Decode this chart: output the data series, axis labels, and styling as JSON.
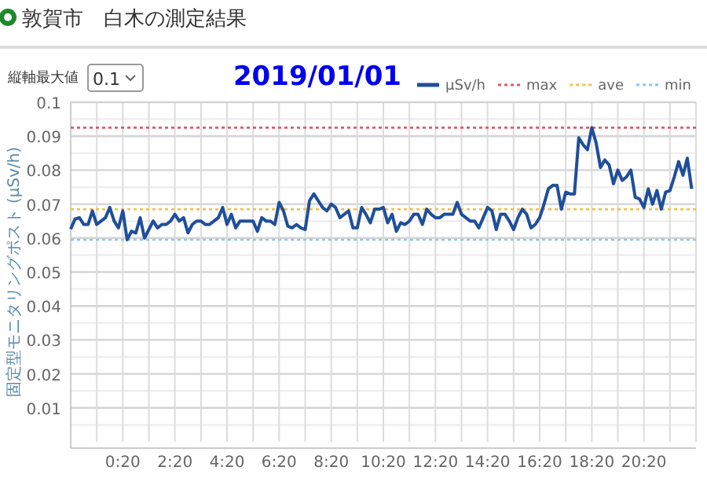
{
  "chart_data": {
    "type": "line",
    "title": "敦賀市　白木の測定結果",
    "subtitle": "2019/01/01",
    "ylabel": "固定型モニタリングポスト (μSv/h)",
    "annotations": [
      "縦軸最大値",
      "0.1"
    ],
    "categories": [
      null,
      null,
      null,
      null,
      null,
      null,
      null,
      null,
      null,
      null,
      null,
      null,
      "0:20",
      null,
      null,
      null,
      null,
      null,
      null,
      null,
      null,
      null,
      null,
      null,
      "2:20",
      null,
      null,
      null,
      null,
      null,
      null,
      null,
      null,
      null,
      null,
      null,
      "4:20",
      null,
      null,
      null,
      null,
      null,
      null,
      null,
      null,
      null,
      null,
      null,
      "6:20",
      null,
      null,
      null,
      null,
      null,
      null,
      null,
      null,
      null,
      null,
      null,
      "8:20",
      null,
      null,
      null,
      null,
      null,
      null,
      null,
      null,
      null,
      null,
      null,
      "10:20",
      null,
      null,
      null,
      null,
      null,
      null,
      null,
      null,
      null,
      null,
      null,
      "12:20",
      null,
      null,
      null,
      null,
      null,
      null,
      null,
      null,
      null,
      null,
      null,
      "14:20",
      null,
      null,
      null,
      null,
      null,
      null,
      null,
      null,
      null,
      null,
      null,
      "16:20",
      null,
      null,
      null,
      null,
      null,
      null,
      null,
      null,
      null,
      null,
      null,
      "18:20",
      null,
      null,
      null,
      null,
      null,
      null,
      null,
      null,
      null,
      null,
      null,
      "20:20",
      null,
      null,
      null,
      null,
      null,
      null,
      null,
      null,
      null,
      null,
      null
    ],
    "series": [
      {
        "name": "μSv/h",
        "color": "#1f4e9a",
        "values": [
          0.0626,
          0.0656,
          0.066,
          0.064,
          0.064,
          0.068,
          0.064,
          0.065,
          0.066,
          0.069,
          0.065,
          0.063,
          0.068,
          0.0595,
          0.062,
          0.0615,
          0.066,
          0.06,
          0.0625,
          0.065,
          0.063,
          0.064,
          0.064,
          0.065,
          0.067,
          0.065,
          0.066,
          0.0615,
          0.064,
          0.065,
          0.065,
          0.064,
          0.064,
          0.065,
          0.066,
          0.069,
          0.064,
          0.067,
          0.063,
          0.065,
          0.065,
          0.065,
          0.065,
          0.062,
          0.066,
          0.065,
          0.065,
          0.064,
          0.0705,
          0.068,
          0.0635,
          0.063,
          0.064,
          0.063,
          0.0625,
          0.071,
          0.073,
          0.071,
          0.069,
          0.068,
          0.07,
          0.069,
          0.066,
          0.067,
          0.068,
          0.063,
          0.063,
          0.069,
          0.067,
          0.0645,
          0.0685,
          0.0685,
          0.069,
          0.0645,
          0.067,
          0.062,
          0.0645,
          0.064,
          0.065,
          0.067,
          0.067,
          0.064,
          0.0685,
          0.067,
          0.066,
          0.066,
          0.067,
          0.067,
          0.067,
          0.0705,
          0.067,
          0.066,
          0.065,
          0.065,
          0.063,
          0.066,
          0.069,
          0.068,
          0.0625,
          0.067,
          0.067,
          0.065,
          0.0625,
          0.066,
          0.0685,
          0.067,
          0.063,
          0.064,
          0.066,
          0.07,
          0.0745,
          0.0755,
          0.0755,
          0.0685,
          0.0735,
          0.073,
          0.073,
          0.0895,
          0.0875,
          0.086,
          0.0925,
          0.088,
          0.0808,
          0.083,
          0.0815,
          0.076,
          0.08,
          0.077,
          0.078,
          0.08,
          0.072,
          0.0715,
          0.069,
          0.0745,
          0.07,
          0.074,
          0.0685,
          0.0735,
          0.074,
          0.078,
          0.0825,
          0.0785,
          0.0835,
          0.0745
        ]
      }
    ],
    "ref_lines": [
      {
        "axis": "y",
        "value": 0.0925,
        "label": "max",
        "color": "#e05a6a",
        "line_style": "dotted"
      },
      {
        "axis": "y",
        "value": 0.0685,
        "label": "ave",
        "color": "#f5c04a",
        "line_style": "dotted"
      },
      {
        "axis": "y",
        "value": 0.0595,
        "label": "min",
        "color": "#8cc8e8",
        "line_style": "dotted"
      }
    ],
    "ylim": [
      0,
      0.1
    ],
    "yticks": [
      0.01,
      0.02,
      0.03,
      0.04,
      0.05,
      0.06,
      0.07,
      0.08,
      0.09,
      0.1
    ],
    "grid": true,
    "legend": "top right",
    "marker": "none",
    "line_style": "solid"
  }
}
